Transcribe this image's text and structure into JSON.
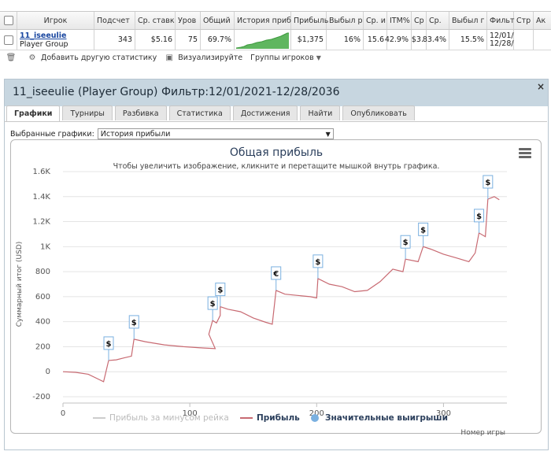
{
  "table": {
    "headers": [
      "Игрок",
      "Подсчет",
      "Ср. ставк",
      "Уров",
      "Общий",
      "История приб",
      "Прибыль",
      "Выбыл р",
      "Ср. и",
      "ITM%",
      "Ср",
      "Ср.",
      "Выбыл г",
      "Фильт",
      "Стр",
      "Ак"
    ],
    "row": {
      "player_name": "11_iseeulie",
      "player_group": "Player Group",
      "count": "343",
      "avg_stake": "$5.16",
      "level": "75",
      "total": "69.7%",
      "profit": "$1,375",
      "col_knockout": "16%",
      "col_avg": "15.6",
      "itm": "42.9%",
      "col_sr": "$3.",
      "col_avg2": "83.4%",
      "col_out": "15.5%",
      "filter_from": "12/01/",
      "filter_to": "12/28/"
    }
  },
  "toolbar": {
    "add_stats": "Добавить другую статистику",
    "visualize": "Визуализируйте",
    "groups": "Группы игроков"
  },
  "panel": {
    "title": "11_iseeulie (Player Group) Фильтр:12/01/2021-12/28/2036",
    "close": "×",
    "tabs": [
      "Графики",
      "Турниры",
      "Разбивка",
      "Статистика",
      "Достижения",
      "Найти",
      "Опубликовать"
    ],
    "select_label": "Выбранные графики:",
    "select_value": "История прибыли"
  },
  "chart_data": {
    "type": "line",
    "title": "Общая прибыль",
    "subtitle": "Чтобы увеличить изображение, кликните и перетащите мышкой внутрь графика.",
    "xlabel": "Номер игры",
    "ylabel": "Суммарный итог (USD)",
    "xlim": [
      0,
      350
    ],
    "ylim": [
      -200,
      1600
    ],
    "x_ticks": [
      0,
      100,
      200,
      300
    ],
    "y_ticks": [
      "-200",
      "0",
      "200",
      "400",
      "600",
      "800",
      "1K",
      "1.2K",
      "1.4K",
      "1.6K"
    ],
    "y_tick_values": [
      -200,
      0,
      200,
      400,
      600,
      800,
      1000,
      1200,
      1400,
      1600
    ],
    "series": [
      {
        "name": "Прибыль",
        "color": "#c86a72",
        "points": [
          [
            0,
            0
          ],
          [
            10,
            -5
          ],
          [
            20,
            -20
          ],
          [
            32,
            -80
          ],
          [
            36,
            90
          ],
          [
            42,
            95
          ],
          [
            48,
            110
          ],
          [
            54,
            125
          ],
          [
            56,
            260
          ],
          [
            65,
            240
          ],
          [
            80,
            215
          ],
          [
            95,
            200
          ],
          [
            110,
            190
          ],
          [
            120,
            185
          ],
          [
            115,
            300
          ],
          [
            118,
            410
          ],
          [
            121,
            390
          ],
          [
            124,
            450
          ],
          [
            124,
            520
          ],
          [
            130,
            500
          ],
          [
            140,
            480
          ],
          [
            150,
            430
          ],
          [
            160,
            395
          ],
          [
            165,
            380
          ],
          [
            168,
            650
          ],
          [
            175,
            620
          ],
          [
            185,
            610
          ],
          [
            195,
            600
          ],
          [
            200,
            590
          ],
          [
            201,
            745
          ],
          [
            210,
            700
          ],
          [
            220,
            680
          ],
          [
            230,
            640
          ],
          [
            240,
            650
          ],
          [
            250,
            720
          ],
          [
            260,
            820
          ],
          [
            268,
            800
          ],
          [
            270,
            900
          ],
          [
            280,
            880
          ],
          [
            284,
            1000
          ],
          [
            290,
            980
          ],
          [
            300,
            940
          ],
          [
            310,
            910
          ],
          [
            320,
            880
          ],
          [
            325,
            950
          ],
          [
            328,
            1110
          ],
          [
            333,
            1080
          ],
          [
            335,
            1380
          ],
          [
            340,
            1400
          ],
          [
            344,
            1375
          ]
        ]
      }
    ],
    "markers": [
      {
        "x": 36,
        "y": 90,
        "label": "$"
      },
      {
        "x": 56,
        "y": 260,
        "label": "$"
      },
      {
        "x": 118,
        "y": 410,
        "label": "$"
      },
      {
        "x": 124,
        "y": 520,
        "label": "$"
      },
      {
        "x": 168,
        "y": 650,
        "label": "€"
      },
      {
        "x": 201,
        "y": 745,
        "label": "$"
      },
      {
        "x": 270,
        "y": 900,
        "label": "$"
      },
      {
        "x": 284,
        "y": 1000,
        "label": "$"
      },
      {
        "x": 328,
        "y": 1110,
        "label": "$"
      },
      {
        "x": 335,
        "y": 1380,
        "label": "$"
      }
    ],
    "legend": [
      {
        "name": "Прибыль за минусом рейка",
        "color": "#cccccc",
        "dim": true
      },
      {
        "name": "Прибыль",
        "color": "#c86a72",
        "dim": false
      },
      {
        "name": "Значительные выигрыши",
        "color": "#7ab0e0",
        "dim": false
      }
    ],
    "legend_position": "bottom"
  }
}
